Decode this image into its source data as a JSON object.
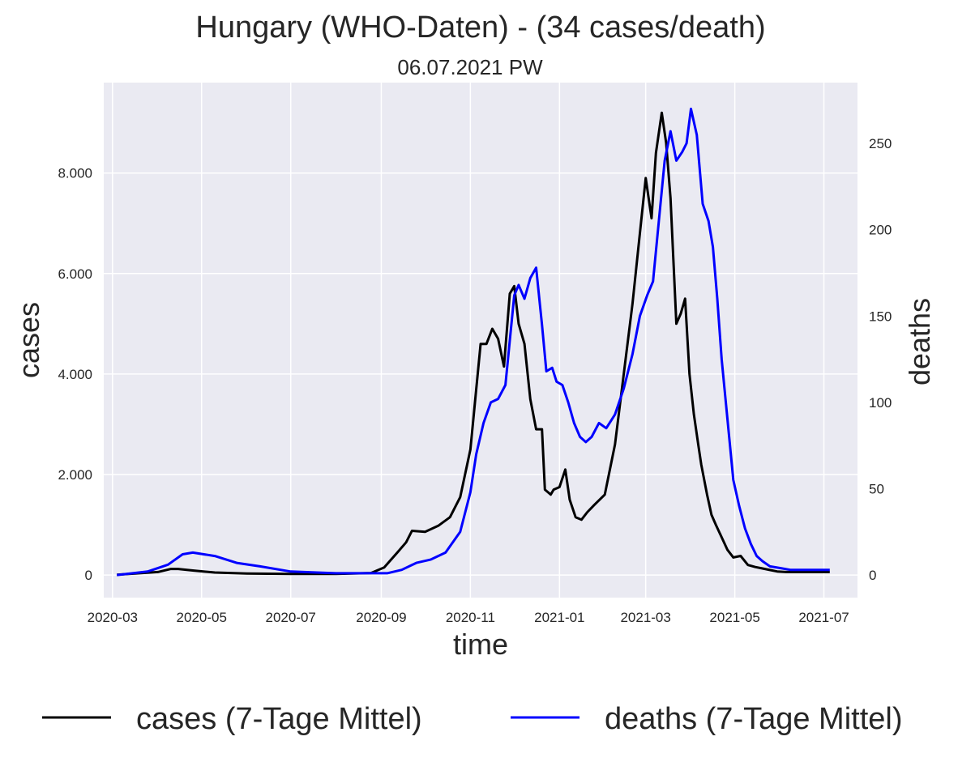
{
  "chart_data": {
    "type": "line",
    "title": "Hungary (WHO-Daten) - (34 cases/death)",
    "subtitle": "06.07.2021 PW",
    "xlabel": "time",
    "ylabel": "cases",
    "y2label": "deaths",
    "grid": true,
    "legend_position": "bottom",
    "x_ticks": [
      "2020-03",
      "2020-05",
      "2020-07",
      "2020-09",
      "2020-11",
      "2021-01",
      "2021-03",
      "2021-05",
      "2021-07"
    ],
    "y_ticks": [
      "0",
      "2.000",
      "4.000",
      "6.000",
      "8.000"
    ],
    "y2_ticks": [
      "0",
      "50",
      "100",
      "150",
      "200",
      "250"
    ],
    "ylim": [
      -450,
      9800
    ],
    "y2lim": [
      -13.1,
      285.2
    ],
    "xlim": [
      "2020-02-24",
      "2021-07-24"
    ],
    "colors": {
      "cases": "#000000",
      "deaths": "#0000ff",
      "plot_background": "#eaeaf2",
      "grid": "#ffffff",
      "y2label": "#0000ff"
    },
    "series": [
      {
        "name": "cases (7-Tage Mittel)",
        "axis": "left",
        "x": [
          "2020-03-04",
          "2020-04-01",
          "2020-04-10",
          "2020-04-15",
          "2020-04-25",
          "2020-05-10",
          "2020-06-01",
          "2020-07-01",
          "2020-08-01",
          "2020-08-25",
          "2020-09-03",
          "2020-09-12",
          "2020-09-18",
          "2020-09-22",
          "2020-10-01",
          "2020-10-10",
          "2020-10-18",
          "2020-10-25",
          "2020-11-01",
          "2020-11-05",
          "2020-11-08",
          "2020-11-12",
          "2020-11-16",
          "2020-11-20",
          "2020-11-24",
          "2020-11-28",
          "2020-12-01",
          "2020-12-04",
          "2020-12-08",
          "2020-12-12",
          "2020-12-16",
          "2020-12-20",
          "2020-12-22",
          "2020-12-26",
          "2020-12-28",
          "2021-01-01",
          "2021-01-05",
          "2021-01-08",
          "2021-01-12",
          "2021-01-16",
          "2021-01-20",
          "2021-01-25",
          "2021-02-01",
          "2021-02-08",
          "2021-02-14",
          "2021-02-20",
          "2021-02-25",
          "2021-03-01",
          "2021-03-05",
          "2021-03-08",
          "2021-03-12",
          "2021-03-15",
          "2021-03-18",
          "2021-03-22",
          "2021-03-25",
          "2021-03-28",
          "2021-03-31",
          "2021-04-03",
          "2021-04-06",
          "2021-04-08",
          "2021-04-12",
          "2021-04-15",
          "2021-04-18",
          "2021-04-22",
          "2021-04-26",
          "2021-04-30",
          "2021-05-05",
          "2021-05-10",
          "2021-05-15",
          "2021-05-20",
          "2021-05-25",
          "2021-05-30",
          "2021-06-05",
          "2021-06-12",
          "2021-06-20",
          "2021-06-26",
          "2021-07-05"
        ],
        "values": [
          5,
          60,
          120,
          120,
          90,
          50,
          30,
          20,
          20,
          40,
          150,
          450,
          650,
          880,
          860,
          980,
          1150,
          1550,
          2500,
          3700,
          4600,
          4600,
          4900,
          4700,
          4150,
          5600,
          5750,
          5000,
          4600,
          3500,
          2900,
          2900,
          1700,
          1600,
          1700,
          1750,
          2100,
          1500,
          1150,
          1100,
          1250,
          1400,
          1600,
          2600,
          4000,
          5400,
          6800,
          7900,
          7100,
          8400,
          9200,
          8600,
          7500,
          5000,
          5200,
          5500,
          4000,
          3200,
          2600,
          2200,
          1600,
          1200,
          1000,
          750,
          500,
          350,
          380,
          200,
          160,
          130,
          100,
          70,
          60,
          60,
          60,
          60,
          60
        ],
        "values_note": "",
        "_": ""
      },
      {
        "name": "deaths (7-Tage Mittel)",
        "axis": "right",
        "x": [
          "2020-03-04",
          "2020-03-25",
          "2020-04-08",
          "2020-04-18",
          "2020-04-25",
          "2020-05-10",
          "2020-05-25",
          "2020-06-10",
          "2020-07-01",
          "2020-08-01",
          "2020-08-25",
          "2020-09-05",
          "2020-09-15",
          "2020-09-25",
          "2020-10-05",
          "2020-10-15",
          "2020-10-25",
          "2020-11-01",
          "2020-11-05",
          "2020-11-10",
          "2020-11-15",
          "2020-11-20",
          "2020-11-25",
          "2020-12-01",
          "2020-12-04",
          "2020-12-08",
          "2020-12-12",
          "2020-12-16",
          "2020-12-20",
          "2020-12-23",
          "2020-12-27",
          "2020-12-30",
          "2021-01-03",
          "2021-01-07",
          "2021-01-11",
          "2021-01-15",
          "2021-01-19",
          "2021-01-23",
          "2021-01-28",
          "2021-02-02",
          "2021-02-08",
          "2021-02-14",
          "2021-02-20",
          "2021-02-25",
          "2021-03-02",
          "2021-03-06",
          "2021-03-10",
          "2021-03-14",
          "2021-03-18",
          "2021-03-22",
          "2021-03-26",
          "2021-03-29",
          "2021-04-01",
          "2021-04-05",
          "2021-04-09",
          "2021-04-13",
          "2021-04-16",
          "2021-04-19",
          "2021-04-22",
          "2021-04-26",
          "2021-04-30",
          "2021-05-04",
          "2021-05-08",
          "2021-05-12",
          "2021-05-16",
          "2021-05-20",
          "2021-05-25",
          "2021-06-01",
          "2021-06-08",
          "2021-06-15",
          "2021-06-22",
          "2021-06-30",
          "2021-07-05"
        ],
        "values": [
          0,
          2,
          6,
          12,
          13,
          11,
          7,
          5,
          2,
          1,
          1,
          1,
          3,
          7,
          9,
          13,
          25,
          48,
          70,
          88,
          100,
          102,
          110,
          162,
          168,
          160,
          172,
          178,
          145,
          118,
          120,
          112,
          110,
          100,
          88,
          80,
          77,
          80,
          88,
          85,
          93,
          108,
          128,
          150,
          162,
          170,
          205,
          240,
          257,
          240,
          245,
          250,
          270,
          255,
          215,
          205,
          190,
          160,
          125,
          90,
          55,
          40,
          27,
          18,
          11,
          8,
          5,
          4,
          3,
          3,
          3,
          3,
          3
        ]
      }
    ]
  },
  "legend": [
    {
      "label": "cases (7-Tage Mittel)",
      "color": "#000000"
    },
    {
      "label": "deaths (7-Tage Mittel)",
      "color": "#0000ff"
    }
  ]
}
